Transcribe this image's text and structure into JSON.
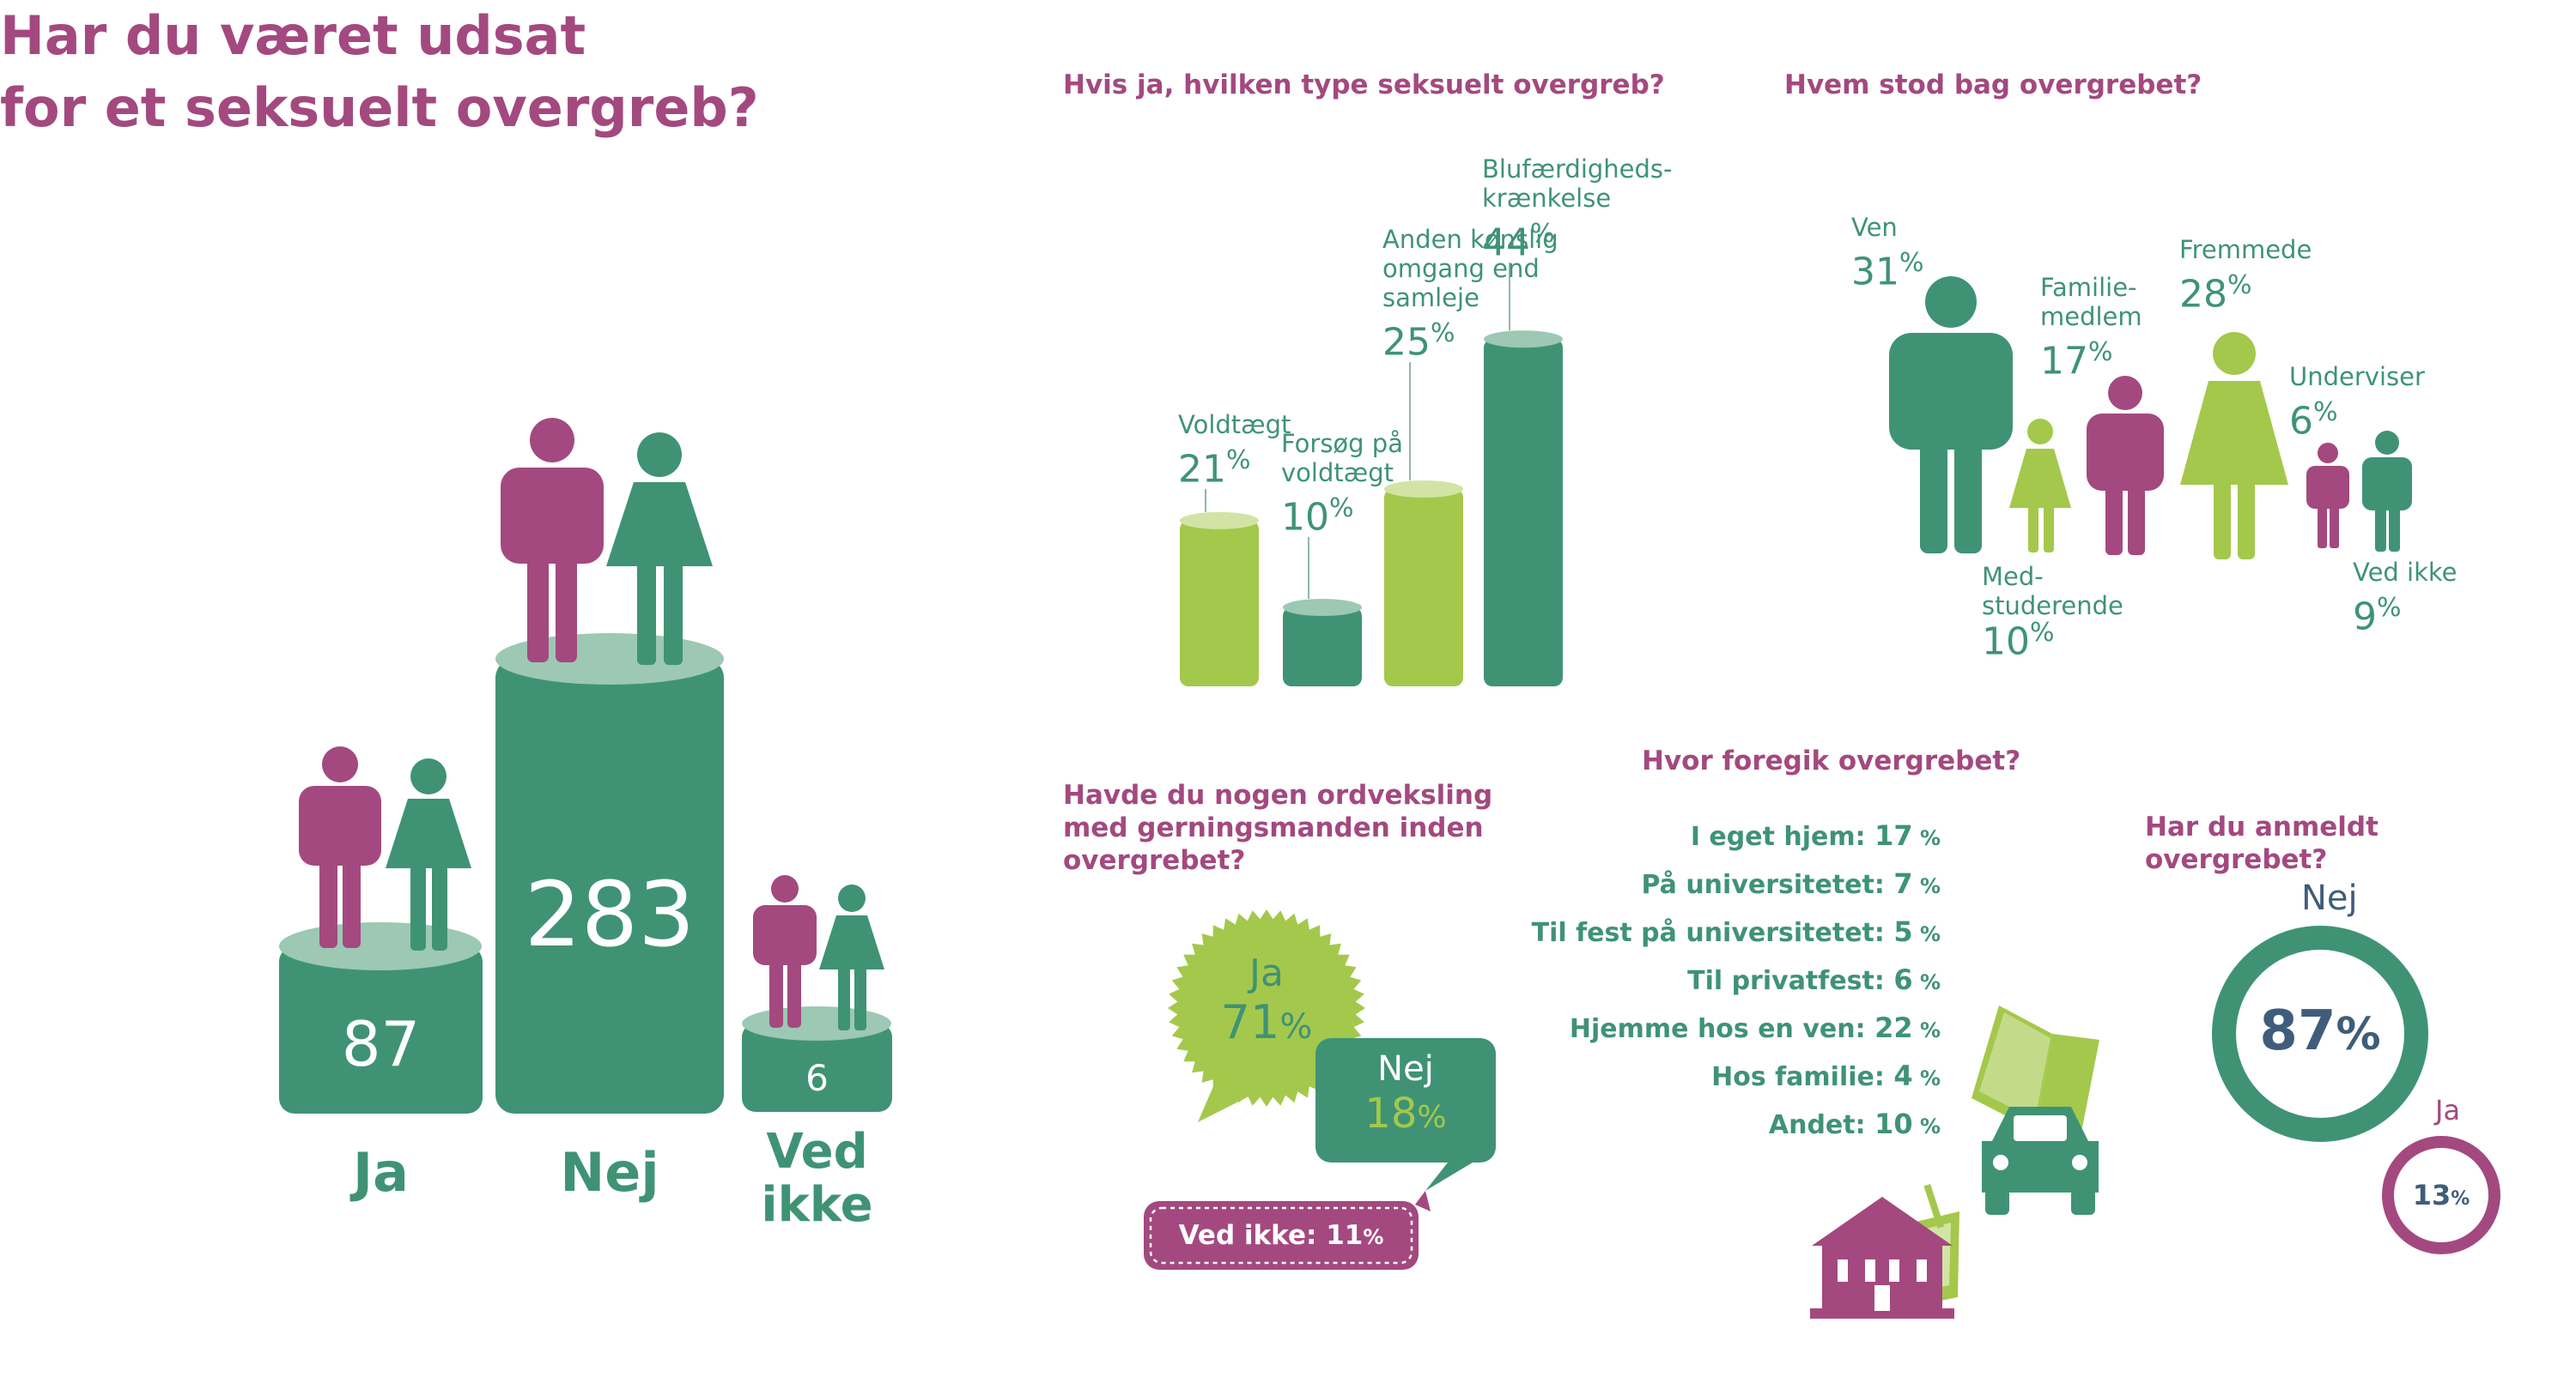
{
  "main": {
    "title_line1": "Har du været udsat",
    "title_line2": "for et seksuelt overgreb?",
    "categories": [
      "Ja",
      "Nej",
      "Ved ikke"
    ],
    "category_line1": [
      "Ja",
      "Nej",
      "Ved"
    ],
    "category_line2": [
      "",
      "",
      "ikke"
    ],
    "values": [
      87,
      283,
      6
    ]
  },
  "type_chart": {
    "title": "Hvis ja, hvilken type seksuelt overgreb?",
    "items": [
      {
        "label_lines": [
          "Voldtægt"
        ],
        "value": 21,
        "color": "green"
      },
      {
        "label_lines": [
          "Forsøg på",
          "voldtægt"
        ],
        "value": 10,
        "color": "teal"
      },
      {
        "label_lines": [
          "Anden kønslig",
          "omgang end",
          "samleje"
        ],
        "value": 25,
        "color": "green"
      },
      {
        "label_lines": [
          "Blufærdigheds-",
          "krænkelse"
        ],
        "value": 44,
        "color": "teal"
      }
    ]
  },
  "who_chart": {
    "title": "Hvem stod bag overgrebet?",
    "items": [
      {
        "label_lines": [
          "Ven"
        ],
        "value": 31
      },
      {
        "label_lines": [
          "Med-",
          "studerende"
        ],
        "value": 10
      },
      {
        "label_lines": [
          "Familie-",
          "medlem"
        ],
        "value": 17
      },
      {
        "label_lines": [
          "Fremmede"
        ],
        "value": 28
      },
      {
        "label_lines": [
          "Underviser"
        ],
        "value": 6
      },
      {
        "label_lines": [
          "Ved ikke"
        ],
        "value": 9
      }
    ]
  },
  "exchange_chart": {
    "title_lines": [
      "Havde du nogen ordveksling",
      "med gerningsmanden inden",
      "overgrebet?"
    ],
    "items": [
      {
        "label": "Ja",
        "value": 71
      },
      {
        "label": "Nej",
        "value": 18
      },
      {
        "label": "Ved ikke:",
        "value": 11
      }
    ]
  },
  "location_chart": {
    "title": "Hvor foregik overgrebet?",
    "items": [
      {
        "label": "I eget hjem:",
        "value": 17
      },
      {
        "label": "På universitetet:",
        "value": 7
      },
      {
        "label": "Til fest på universitetet:",
        "value": 5
      },
      {
        "label": "Til privatfest:",
        "value": 6
      },
      {
        "label": "Hjemme hos en ven:",
        "value": 22
      },
      {
        "label": "Hos familie:",
        "value": 4
      },
      {
        "label": "Andet:",
        "value": 10
      }
    ],
    "icons": [
      "book-icon",
      "car-icon",
      "drink-icon",
      "house-icon"
    ]
  },
  "report_chart": {
    "title_lines": [
      "Har du anmeldt",
      "overgrebet?"
    ],
    "items": [
      {
        "label": "Nej",
        "value": 87
      },
      {
        "label": "Ja",
        "value": 13
      }
    ]
  },
  "percent_sign": "%",
  "colors": {
    "purple": "#a3497f",
    "teal": "#3f9374",
    "green": "#a4c84b",
    "teal_light": "#9cc8b4",
    "green_light": "#d2e4a5"
  }
}
